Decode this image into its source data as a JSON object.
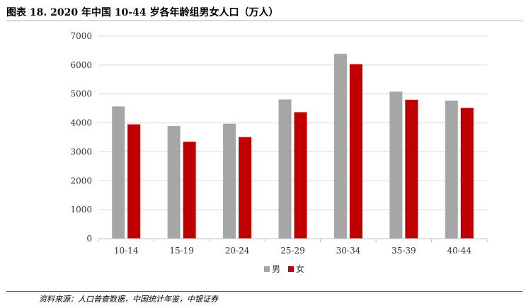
{
  "title": "图表 18. 2020 年中国 10-44 岁各年龄组男女人口（万人）",
  "source": "资料来源：人口普查数据，中国统计年鉴，中银证券",
  "chart_data": {
    "type": "bar",
    "categories": [
      "10-14",
      "15-19",
      "20-24",
      "25-29",
      "30-34",
      "35-39",
      "40-44"
    ],
    "series": [
      {
        "name": "男",
        "color": "#a6a6a6",
        "values": [
          4570,
          3890,
          3970,
          4810,
          6390,
          5080,
          4770
        ]
      },
      {
        "name": "女",
        "color": "#c00000",
        "values": [
          3950,
          3350,
          3510,
          4370,
          6030,
          4800,
          4520
        ]
      }
    ],
    "y_ticks": [
      "0",
      "1000",
      "2000",
      "3000",
      "4000",
      "5000",
      "6000",
      "7000"
    ],
    "ylim": [
      0,
      7000
    ],
    "grid": true,
    "legend_position": "bottom-center"
  }
}
